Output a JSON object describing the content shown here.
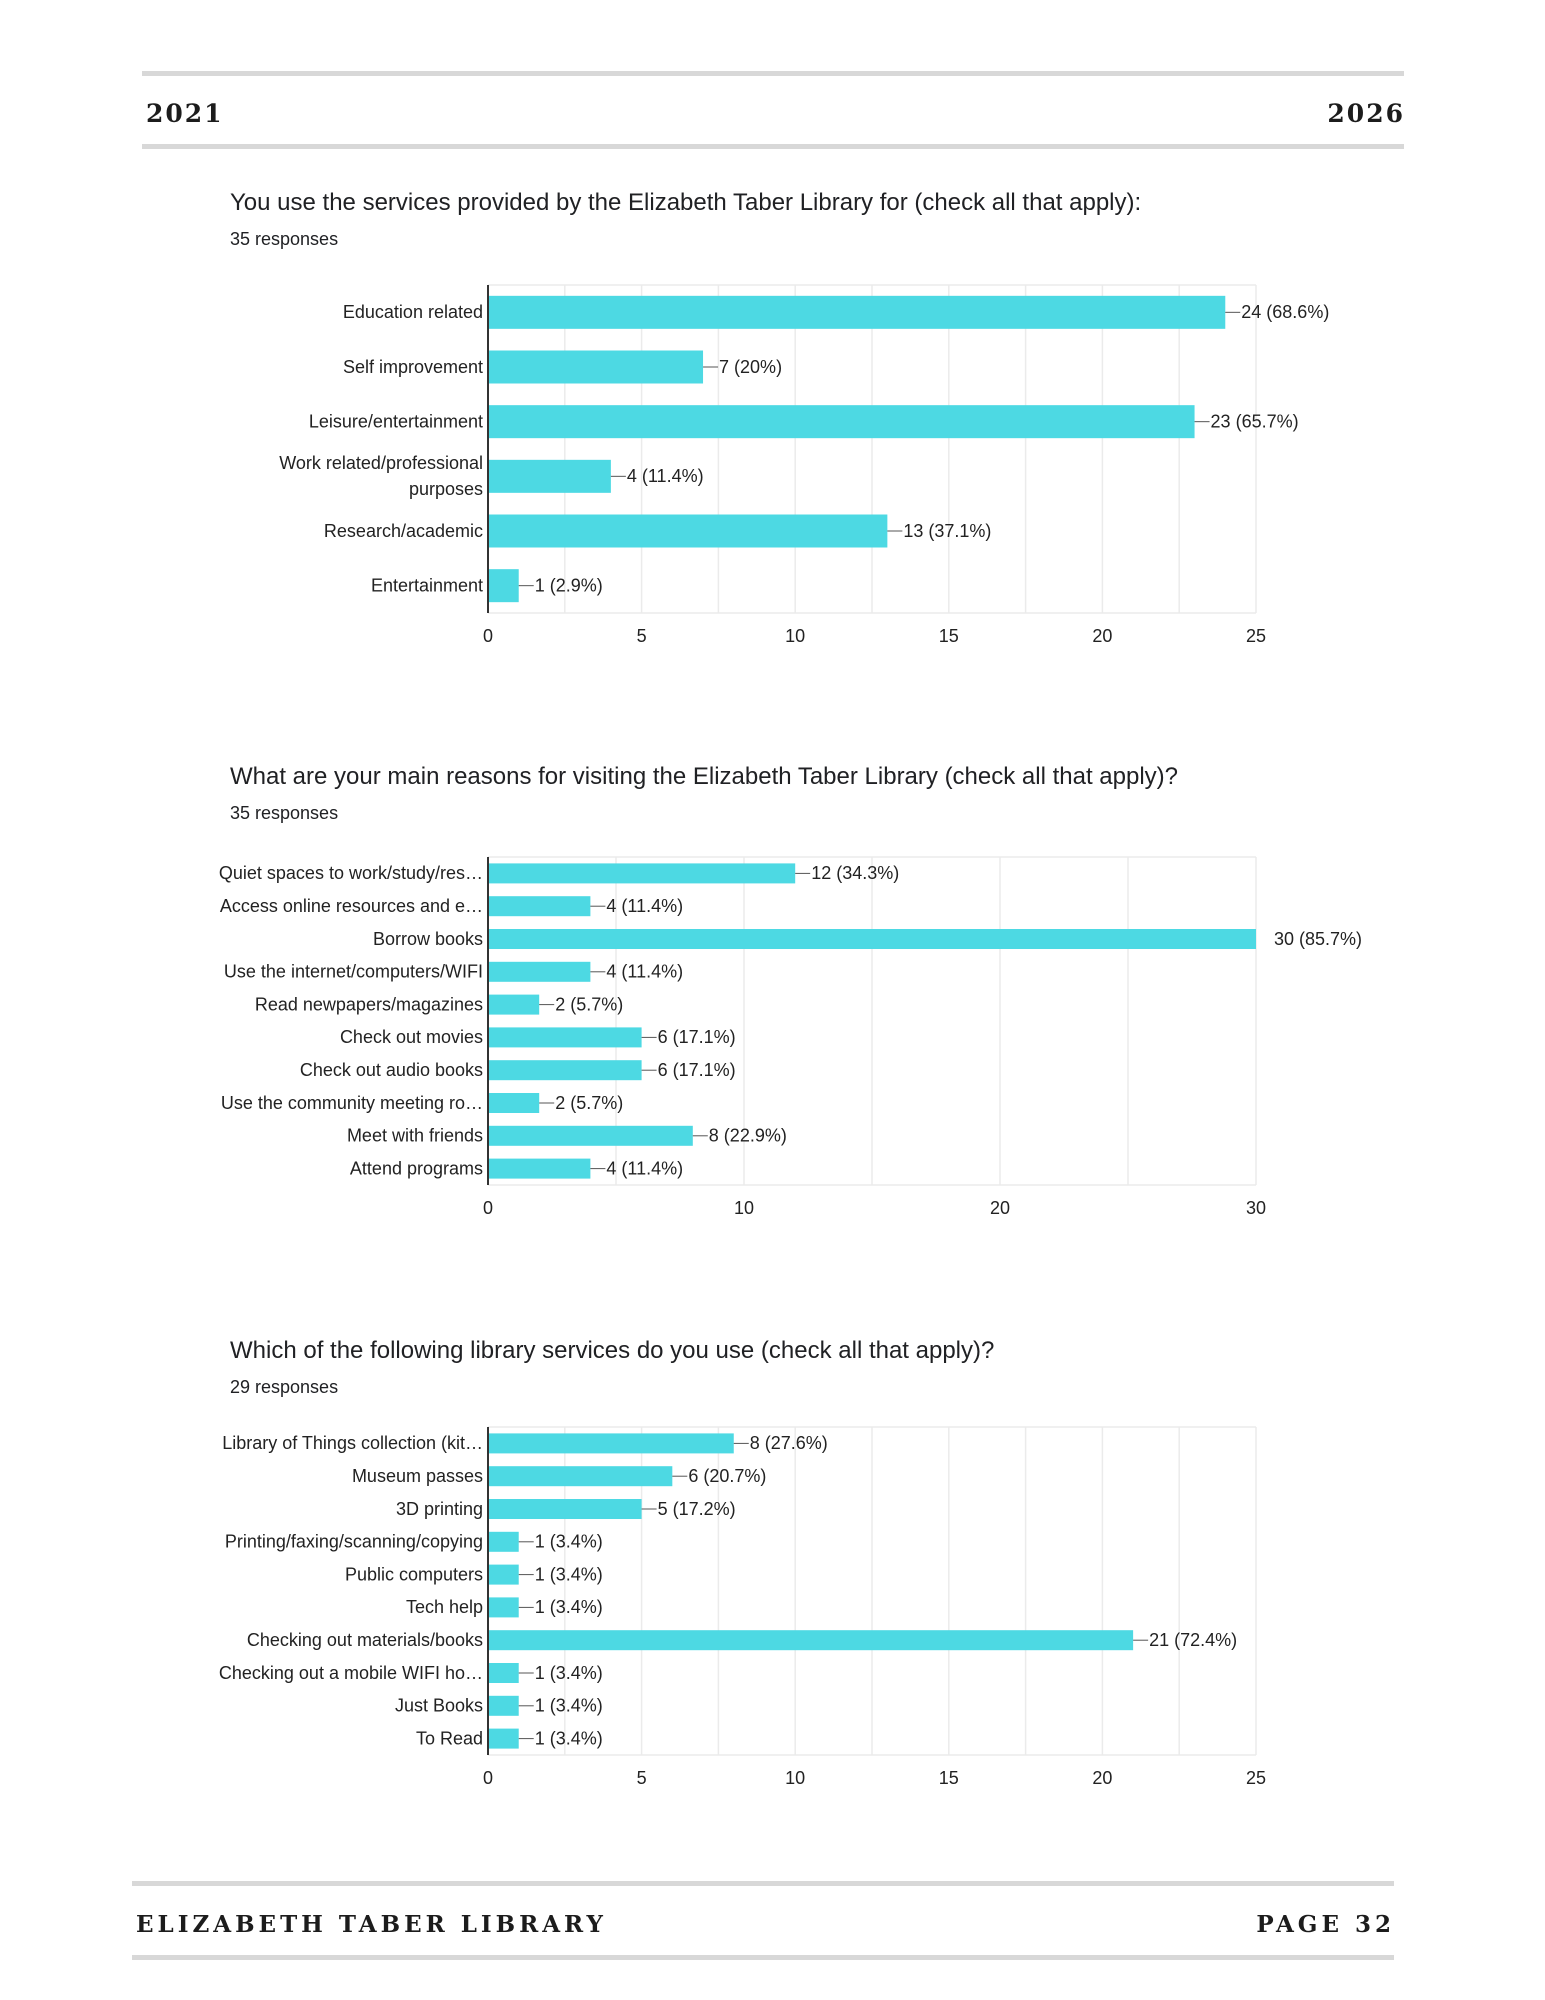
{
  "header": {
    "left": "2021",
    "right": "2026"
  },
  "footer": {
    "left": "ELIZABETH TABER LIBRARY",
    "right": "PAGE 32"
  },
  "colors": {
    "bar": "#4dd9e3",
    "grid": "#ebebeb",
    "axis": "#333333"
  },
  "questions": [
    {
      "title": "You use the services provided by the Elizabeth Taber Library for (check all that apply):",
      "responses": "35 responses"
    },
    {
      "title": "What are your main reasons for visiting the Elizabeth Taber Library (check all that apply)?",
      "responses": "35 responses"
    },
    {
      "title": "Which of the following library services do you use (check all that apply)?",
      "responses": "29 responses"
    }
  ],
  "chart_data": [
    {
      "type": "bar",
      "orientation": "horizontal",
      "categories": [
        "Education related",
        "Self improvement",
        "Leisure/entertainment",
        [
          "Work related/professional",
          "purposes"
        ],
        "Research/academic",
        "Entertainment"
      ],
      "values": [
        24,
        7,
        23,
        4,
        13,
        1
      ],
      "data_labels": [
        "24 (68.6%)",
        "7 (20%)",
        "23 (65.7%)",
        "4 (11.4%)",
        "13 (37.1%)",
        "1 (2.9%)"
      ],
      "xticks": [
        0,
        5,
        10,
        15,
        20,
        25
      ],
      "xlim": [
        0,
        25
      ],
      "grid": true
    },
    {
      "type": "bar",
      "orientation": "horizontal",
      "categories": [
        "Quiet spaces to work/study/res…",
        "Access online resources and e…",
        "Borrow books",
        "Use the internet/computers/WIFI",
        "Read newpapers/magazines",
        "Check out movies",
        "Check out audio books",
        "Use the community meeting ro…",
        "Meet with friends",
        "Attend programs"
      ],
      "values": [
        12,
        4,
        30,
        4,
        2,
        6,
        6,
        2,
        8,
        4
      ],
      "data_labels": [
        "12 (34.3%)",
        "4 (11.4%)",
        "30 (85.7%)",
        "4 (11.4%)",
        "2 (5.7%)",
        "6 (17.1%)",
        "6 (17.1%)",
        "2 (5.7%)",
        "8 (22.9%)",
        "4 (11.4%)"
      ],
      "xticks": [
        0,
        10,
        20,
        30
      ],
      "xlim": [
        0,
        30
      ],
      "grid": true
    },
    {
      "type": "bar",
      "orientation": "horizontal",
      "categories": [
        "Library of Things collection (kit…",
        "Museum passes",
        "3D printing",
        "Printing/faxing/scanning/copying",
        "Public computers",
        "Tech help",
        "Checking out materials/books",
        "Checking out a mobile WIFI ho…",
        "Just Books",
        "To Read"
      ],
      "values": [
        8,
        6,
        5,
        1,
        1,
        1,
        21,
        1,
        1,
        1
      ],
      "data_labels": [
        "8 (27.6%)",
        "6 (20.7%)",
        "5 (17.2%)",
        "1 (3.4%)",
        "1 (3.4%)",
        "1 (3.4%)",
        "21 (72.4%)",
        "1 (3.4%)",
        "1 (3.4%)",
        "1 (3.4%)"
      ],
      "xticks": [
        0,
        5,
        10,
        15,
        20,
        25
      ],
      "xlim": [
        0,
        25
      ],
      "grid": true
    }
  ]
}
